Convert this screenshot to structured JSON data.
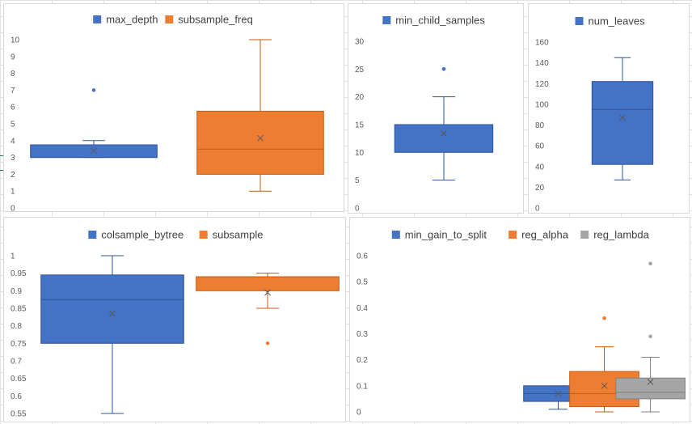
{
  "colors": {
    "blue": "#4472C4",
    "blue_edge": "#2F5597",
    "orange": "#ED7D31",
    "orange_edge": "#C55A11",
    "gray": "#A5A5A5",
    "gray_edge": "#7F7F7F",
    "mean_marker": "#595959"
  },
  "chart_data": [
    {
      "type": "box",
      "title": "",
      "legend_position": "top",
      "ylim": [
        0,
        10
      ],
      "yticks": [
        "0",
        "1",
        "2",
        "3",
        "4",
        "5",
        "6",
        "7",
        "8",
        "9",
        "10"
      ],
      "series": [
        {
          "name": "max_depth",
          "color": "#4472C4",
          "min": 3,
          "q1": 3,
          "median": 3,
          "q3": 3.75,
          "max": 4,
          "mean": 3.4,
          "outliers": [
            7
          ]
        },
        {
          "name": "subsample_freq",
          "color": "#ED7D31",
          "min": 1,
          "q1": 2,
          "median": 3.5,
          "q3": 5.75,
          "max": 10,
          "mean": 4.15,
          "outliers": []
        }
      ]
    },
    {
      "type": "box",
      "title": "",
      "legend_position": "top",
      "ylim": [
        0,
        30
      ],
      "yticks": [
        "0",
        "5",
        "10",
        "15",
        "20",
        "25",
        "30"
      ],
      "series": [
        {
          "name": "min_child_samples",
          "color": "#4472C4",
          "min": 5,
          "q1": 10,
          "median": 15,
          "q3": 15,
          "max": 20,
          "mean": 13.4,
          "outliers": [
            25
          ]
        }
      ]
    },
    {
      "type": "box",
      "title": "",
      "legend_position": "top",
      "ylim": [
        0,
        160
      ],
      "yticks": [
        "0",
        "20",
        "40",
        "60",
        "80",
        "100",
        "120",
        "140",
        "160"
      ],
      "series": [
        {
          "name": "num_leaves",
          "color": "#4472C4",
          "min": 27,
          "q1": 42,
          "median": 95,
          "q3": 122,
          "max": 145,
          "mean": 87,
          "outliers": []
        }
      ]
    },
    {
      "type": "box",
      "title": "",
      "legend_position": "top",
      "ylim": [
        0.55,
        1
      ],
      "yticks": [
        "0.55",
        "0.6",
        "0.65",
        "0.7",
        "0.75",
        "0.8",
        "0.85",
        "0.9",
        "0.95",
        "1"
      ],
      "series": [
        {
          "name": "colsample_bytree",
          "color": "#4472C4",
          "min": 0.55,
          "q1": 0.75,
          "median": 0.875,
          "q3": 0.945,
          "max": 1.0,
          "mean": 0.835,
          "outliers": []
        },
        {
          "name": "subsample",
          "color": "#ED7D31",
          "min": 0.85,
          "q1": 0.9,
          "median": 0.94,
          "q3": 0.94,
          "max": 0.95,
          "mean": 0.895,
          "outliers": [
            0.75
          ]
        }
      ]
    },
    {
      "type": "box",
      "title": "",
      "legend_position": "top",
      "ylim": [
        0,
        0.6
      ],
      "yticks": [
        "0",
        "0.1",
        "0.2",
        "0.3",
        "0.4",
        "0.5",
        "0.6"
      ],
      "series": [
        {
          "name": "min_gain_to_split",
          "color": "#4472C4",
          "min": 0.01,
          "q1": 0.04,
          "median": 0.07,
          "q3": 0.1,
          "max": 0.1,
          "mean": 0.07,
          "outliers": []
        },
        {
          "name": "reg_alpha",
          "color": "#ED7D31",
          "min": 0.0,
          "q1": 0.02,
          "median": 0.07,
          "q3": 0.155,
          "max": 0.25,
          "mean": 0.1,
          "outliers": [
            0.36
          ]
        },
        {
          "name": "reg_lambda",
          "color": "#A5A5A5",
          "min": 0.0,
          "q1": 0.05,
          "median": 0.075,
          "q3": 0.13,
          "max": 0.21,
          "mean": 0.115,
          "outliers": [
            0.29,
            0.57
          ]
        }
      ]
    }
  ]
}
